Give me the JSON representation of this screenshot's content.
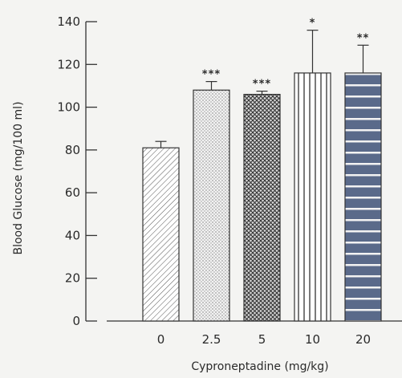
{
  "chart_data": {
    "type": "bar",
    "xlabel": "Cyproneptadine (mg/kg)",
    "ylabel": "Blood Glucose (mg/100 ml)",
    "ylim": [
      0,
      140
    ],
    "yticks": [
      0,
      20,
      40,
      60,
      80,
      100,
      120,
      140
    ],
    "categories": [
      "0",
      "2.5",
      "5",
      "10",
      "20"
    ],
    "values": [
      81,
      108,
      106,
      116,
      116
    ],
    "errors": [
      3,
      4,
      1.5,
      20,
      13
    ],
    "significance": [
      "",
      "***",
      "***",
      "*",
      "**"
    ],
    "patterns": [
      "diagonal-hatch-light",
      "stipple",
      "crosshatch-dense",
      "vertical-lines",
      "horizontal-bands"
    ],
    "grid": false
  }
}
